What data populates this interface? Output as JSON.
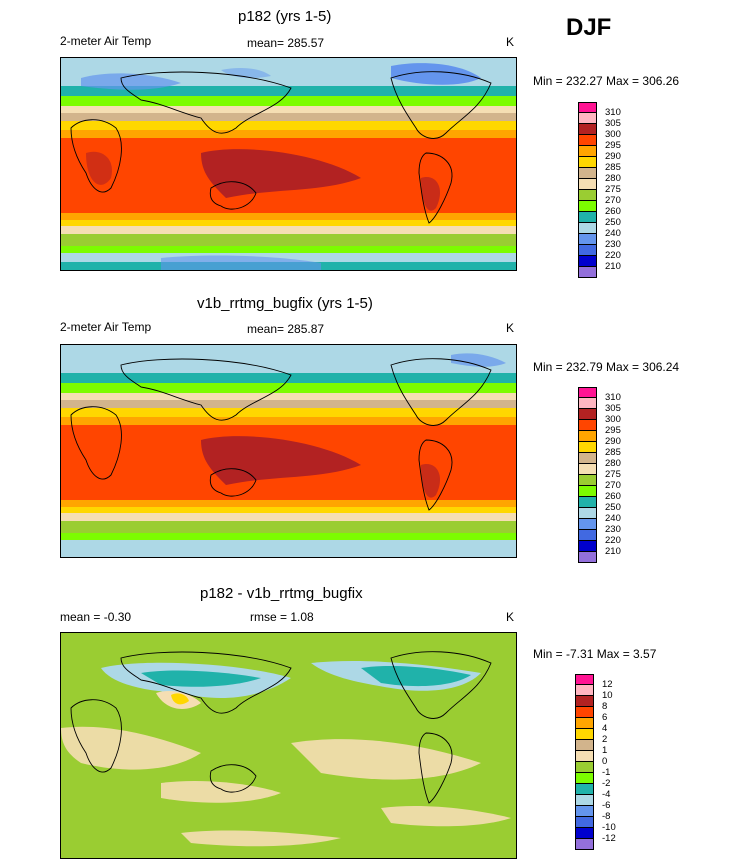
{
  "season": "DJF",
  "panels": [
    {
      "title": "p182 (yrs 1-5)",
      "left_label": "2-meter Air Temp",
      "center_label": "mean= 285.57",
      "unit": "K",
      "minmax": "Min = 232.27 Max = 306.26",
      "levels": [
        "310",
        "305",
        "300",
        "295",
        "290",
        "285",
        "280",
        "275",
        "270",
        "260",
        "250",
        "240",
        "230",
        "220",
        "210"
      ]
    },
    {
      "title": "v1b_rrtmg_bugfix (yrs 1-5)",
      "left_label": "2-meter Air Temp",
      "center_label": "mean= 285.87",
      "unit": "K",
      "minmax": "Min = 232.79 Max = 306.24",
      "levels": [
        "310",
        "305",
        "300",
        "295",
        "290",
        "285",
        "280",
        "275",
        "270",
        "260",
        "250",
        "240",
        "230",
        "220",
        "210"
      ]
    },
    {
      "title": "p182 - v1b_rrtmg_bugfix",
      "left_label": "mean =  -0.30",
      "center_label": "rmse =   1.08",
      "unit": "K",
      "minmax": "Min =  -7.31 Max =   3.57",
      "levels": [
        "12",
        "10",
        "8",
        "6",
        "4",
        "2",
        "1",
        "0",
        "-1",
        "-2",
        "-4",
        "-6",
        "-8",
        "-10",
        "-12"
      ]
    }
  ],
  "colors": {
    "scale": [
      "#ff1493",
      "#ffb6c1",
      "#b22222",
      "#ff4500",
      "#ffa500",
      "#ffd700",
      "#d2b48c",
      "#f5deb3",
      "#9acd32",
      "#7cfc00",
      "#20b2aa",
      "#add8e6",
      "#6495ed",
      "#4169e1",
      "#0000cd",
      "#9370db"
    ]
  }
}
